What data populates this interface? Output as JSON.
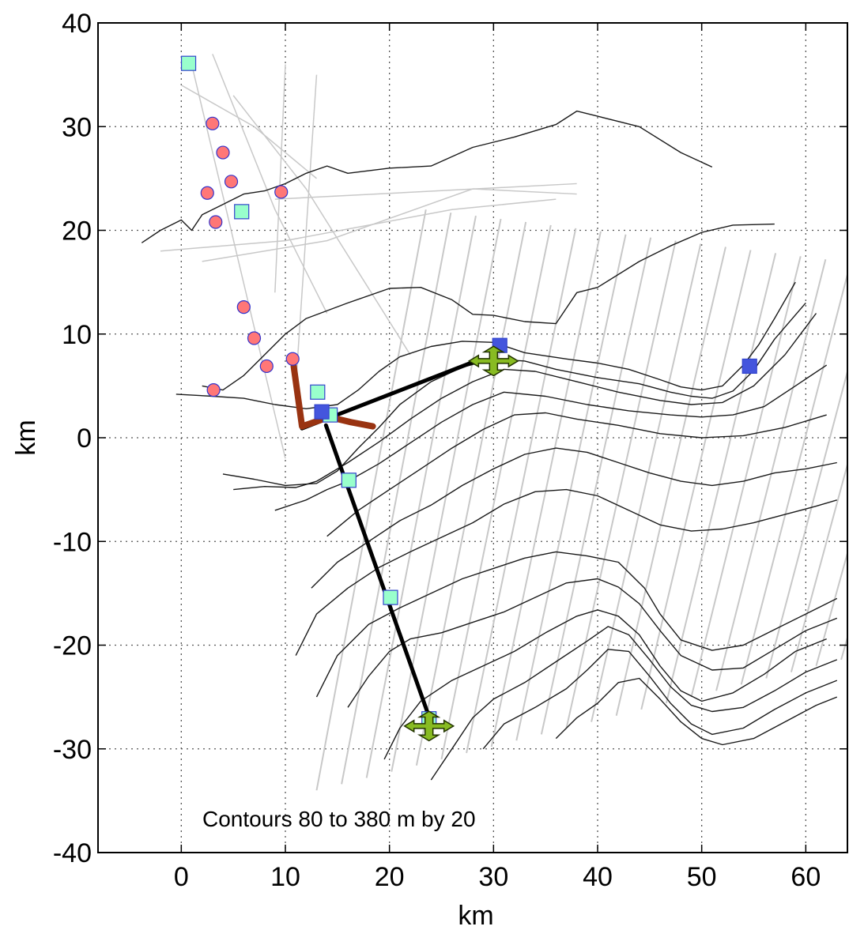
{
  "chart_data": {
    "type": "scatter",
    "title": "",
    "xlabel": "km",
    "ylabel": "km",
    "xlim": [
      -8,
      64
    ],
    "ylim": [
      -40,
      40
    ],
    "xticks": [
      0,
      10,
      20,
      30,
      40,
      50,
      60
    ],
    "yticks": [
      40,
      30,
      20,
      10,
      0,
      -10,
      -20,
      -30,
      -40
    ],
    "grid": true,
    "annotation": "Contours 80 to 380 m by 20",
    "colors": {
      "circle_fill": "#ff7777",
      "circle_stroke": "#3333cc",
      "square_light_fill": "#99ffcc",
      "square_dark_fill": "#4455dd",
      "section_line": "#000000",
      "brown_line": "#993311",
      "arrow_fill": "#88bb22",
      "contour": "#1a1a1a",
      "track": "#c8c8c8"
    },
    "series": [
      {
        "marker": "circle",
        "points": [
          [
            3,
            30.3
          ],
          [
            4,
            27.5
          ],
          [
            4.8,
            24.7
          ],
          [
            2.5,
            23.6
          ],
          [
            3.3,
            20.8
          ],
          [
            9.6,
            23.7
          ],
          [
            6,
            12.6
          ],
          [
            7,
            9.6
          ],
          [
            8.2,
            6.9
          ],
          [
            10.7,
            7.6
          ],
          [
            3.1,
            4.6
          ]
        ]
      },
      {
        "marker": "square-light",
        "points": [
          [
            0.7,
            36.1
          ],
          [
            5.8,
            21.8
          ],
          [
            13.1,
            4.4
          ],
          [
            14.3,
            2.2
          ],
          [
            16.1,
            -4.1
          ],
          [
            20.1,
            -15.4
          ],
          [
            23.8,
            -27.1
          ]
        ]
      },
      {
        "marker": "square-dark",
        "points": [
          [
            30.6,
            8.9
          ],
          [
            13.5,
            2.5
          ],
          [
            54.6,
            6.9
          ]
        ]
      },
      {
        "marker": "line-black",
        "points": [
          [
            11.6,
            0.9
          ],
          [
            28.3,
            7.4
          ]
        ]
      },
      {
        "marker": "line-black",
        "points": [
          [
            13.9,
            1.2
          ],
          [
            23.8,
            -26.9
          ]
        ]
      },
      {
        "marker": "line-brown",
        "points": [
          [
            10.8,
            6.9
          ],
          [
            11.6,
            1.1
          ],
          [
            14.2,
            2.0
          ],
          [
            16.3,
            1.5
          ],
          [
            18.4,
            1.1
          ]
        ]
      },
      {
        "marker": "move-arrow",
        "points": [
          [
            30.0,
            7.4
          ],
          [
            23.8,
            -27.8
          ]
        ]
      }
    ],
    "contours": [
      [
        [
          -3.8,
          18.8
        ],
        [
          -2,
          20
        ],
        [
          0,
          21
        ],
        [
          1,
          20
        ],
        [
          2,
          21.5
        ],
        [
          4,
          22.5
        ],
        [
          6,
          23.5
        ],
        [
          8,
          23.8
        ],
        [
          10,
          24.5
        ],
        [
          12,
          25.5
        ],
        [
          14,
          26.2
        ],
        [
          16,
          25.5
        ],
        [
          20,
          26
        ],
        [
          24,
          26.2
        ],
        [
          28,
          28
        ],
        [
          32,
          29
        ],
        [
          36,
          30.2
        ],
        [
          38,
          31.5
        ],
        [
          40,
          31
        ],
        [
          44,
          30
        ],
        [
          48,
          27.5
        ],
        [
          51,
          26.1
        ]
      ],
      [
        [
          2,
          5
        ],
        [
          4,
          4.6
        ],
        [
          6,
          6
        ],
        [
          8,
          8
        ],
        [
          10,
          10
        ],
        [
          12,
          11.5
        ],
        [
          16,
          13
        ],
        [
          20,
          14.4
        ],
        [
          23,
          14.5
        ],
        [
          26,
          13.3
        ],
        [
          28,
          11.9
        ],
        [
          30,
          11.8
        ],
        [
          33,
          11.2
        ],
        [
          36,
          11
        ],
        [
          38,
          14
        ],
        [
          40,
          14.5
        ],
        [
          44,
          17
        ],
        [
          47,
          18.5
        ],
        [
          50,
          19.8
        ],
        [
          53,
          20.5
        ],
        [
          57,
          20.6
        ]
      ],
      [
        [
          -0.5,
          4.2
        ],
        [
          3,
          4
        ],
        [
          6,
          3.8
        ],
        [
          9,
          3.2
        ],
        [
          12,
          2.8
        ],
        [
          15,
          3.2
        ],
        [
          17,
          4.6
        ],
        [
          19,
          6.4
        ],
        [
          21,
          7.8
        ],
        [
          24,
          8.8
        ],
        [
          27,
          9.3
        ],
        [
          30,
          9.2
        ],
        [
          33,
          8.2
        ],
        [
          37,
          7.6
        ],
        [
          40,
          7.2
        ],
        [
          43,
          6.6
        ],
        [
          46,
          5.6
        ],
        [
          48,
          4.9
        ],
        [
          50,
          4.6
        ],
        [
          52,
          5
        ],
        [
          54,
          7
        ],
        [
          55.5,
          9
        ],
        [
          57,
          11.5
        ],
        [
          59,
          15
        ]
      ],
      [
        [
          4,
          -3.5
        ],
        [
          7,
          -4
        ],
        [
          10,
          -4.6
        ],
        [
          13,
          -4.4
        ],
        [
          15,
          -3.2
        ],
        [
          17,
          -1
        ],
        [
          19,
          1
        ],
        [
          21,
          3.2
        ],
        [
          24,
          5.4
        ],
        [
          27,
          6.8
        ],
        [
          30,
          7.6
        ],
        [
          33,
          7.4
        ],
        [
          36,
          6.6
        ],
        [
          40,
          5.8
        ],
        [
          44,
          5.2
        ],
        [
          47,
          4.4
        ],
        [
          49,
          4
        ],
        [
          51,
          3.8
        ],
        [
          53,
          4.5
        ],
        [
          55,
          6.5
        ],
        [
          57,
          9.5
        ],
        [
          60,
          13
        ]
      ],
      [
        [
          5,
          -5
        ],
        [
          8,
          -4.7
        ],
        [
          11,
          -4.8
        ],
        [
          13,
          -4.2
        ],
        [
          16,
          -2.4
        ],
        [
          19,
          -0.4
        ],
        [
          22,
          1.8
        ],
        [
          25,
          3.8
        ],
        [
          28,
          5.4
        ],
        [
          31,
          6.6
        ],
        [
          34,
          6.4
        ],
        [
          38,
          5.4
        ],
        [
          42,
          4.4
        ],
        [
          46,
          3.6
        ],
        [
          49,
          3.2
        ],
        [
          52,
          3.4
        ],
        [
          55,
          5
        ],
        [
          58,
          8
        ],
        [
          61,
          12
        ]
      ],
      [
        [
          9,
          -7
        ],
        [
          12,
          -6
        ],
        [
          14,
          -5
        ],
        [
          16,
          -4.2
        ],
        [
          19,
          -2.5
        ],
        [
          22,
          -0.5
        ],
        [
          25,
          1.5
        ],
        [
          28,
          3.2
        ],
        [
          31,
          4.4
        ],
        [
          35,
          4
        ],
        [
          39,
          3.2
        ],
        [
          43,
          2.6
        ],
        [
          47,
          2.2
        ],
        [
          50,
          2
        ],
        [
          53,
          2.2
        ],
        [
          56,
          3
        ],
        [
          59,
          5
        ],
        [
          62,
          7
        ]
      ],
      [
        [
          14,
          -9.5
        ],
        [
          17,
          -7
        ],
        [
          20,
          -5
        ],
        [
          23,
          -3
        ],
        [
          26,
          -1
        ],
        [
          29,
          0.8
        ],
        [
          32,
          2.2
        ],
        [
          35,
          2.4
        ],
        [
          38,
          1.8
        ],
        [
          42,
          1.2
        ],
        [
          46,
          0.4
        ],
        [
          50,
          0
        ],
        [
          54,
          0.2
        ],
        [
          58,
          1
        ],
        [
          62,
          2.2
        ]
      ],
      [
        [
          12.5,
          -14.5
        ],
        [
          15,
          -12
        ],
        [
          18,
          -10
        ],
        [
          21,
          -8
        ],
        [
          24,
          -6.5
        ],
        [
          27,
          -4.6
        ],
        [
          30,
          -3
        ],
        [
          33,
          -1.6
        ],
        [
          36,
          -1
        ],
        [
          39,
          -1.4
        ],
        [
          42,
          -2.4
        ],
        [
          45,
          -3.4
        ],
        [
          48,
          -4.2
        ],
        [
          51,
          -4.6
        ],
        [
          54,
          -4.2
        ],
        [
          57,
          -3.4
        ],
        [
          60,
          -3
        ],
        [
          63,
          -2.4
        ]
      ],
      [
        [
          11,
          -21
        ],
        [
          13,
          -17
        ],
        [
          16,
          -14.5
        ],
        [
          19,
          -12.5
        ],
        [
          22,
          -11
        ],
        [
          25,
          -9.6
        ],
        [
          28,
          -8.2
        ],
        [
          31,
          -6.4
        ],
        [
          34,
          -5.2
        ],
        [
          37,
          -5
        ],
        [
          40,
          -5.6
        ],
        [
          43,
          -7
        ],
        [
          46,
          -8.4
        ],
        [
          49,
          -9
        ],
        [
          52,
          -8.8
        ],
        [
          55,
          -8.2
        ],
        [
          58,
          -7.4
        ],
        [
          61,
          -6.6
        ],
        [
          63,
          -6
        ]
      ],
      [
        [
          13,
          -25
        ],
        [
          15,
          -21
        ],
        [
          18,
          -18
        ],
        [
          21,
          -16.4
        ],
        [
          24,
          -15
        ],
        [
          27,
          -13.6
        ],
        [
          30,
          -12.6
        ],
        [
          33,
          -11.6
        ],
        [
          36,
          -11
        ],
        [
          39,
          -11.4
        ],
        [
          42,
          -12
        ],
        [
          44.5,
          -14.5
        ],
        [
          46,
          -17
        ],
        [
          48,
          -19.5
        ],
        [
          51,
          -20.5
        ],
        [
          54,
          -20
        ],
        [
          57,
          -18.5
        ],
        [
          60,
          -17
        ],
        [
          63,
          -15.5
        ]
      ],
      [
        [
          16,
          -26
        ],
        [
          18,
          -23
        ],
        [
          20,
          -20.6
        ],
        [
          22,
          -19.4
        ],
        [
          25,
          -18.8
        ],
        [
          28,
          -17.8
        ],
        [
          31,
          -16.8
        ],
        [
          34,
          -15.4
        ],
        [
          37,
          -14
        ],
        [
          40,
          -13.6
        ],
        [
          42,
          -14.4
        ],
        [
          44,
          -16
        ],
        [
          46,
          -18.6
        ],
        [
          48,
          -21
        ],
        [
          51,
          -22.4
        ],
        [
          54,
          -22.2
        ],
        [
          57,
          -20.4
        ],
        [
          60,
          -18.6
        ],
        [
          63,
          -17.4
        ]
      ],
      [
        [
          19.5,
          -31
        ],
        [
          21,
          -28
        ],
        [
          23,
          -25.4
        ],
        [
          26,
          -23.4
        ],
        [
          29,
          -22
        ],
        [
          32,
          -20.6
        ],
        [
          35,
          -18.8
        ],
        [
          38,
          -17.2
        ],
        [
          40,
          -16.6
        ],
        [
          42,
          -17.2
        ],
        [
          44,
          -19
        ],
        [
          46,
          -22
        ],
        [
          48,
          -24.4
        ],
        [
          50,
          -25.4
        ],
        [
          53,
          -24.6
        ],
        [
          56,
          -22.8
        ],
        [
          59,
          -20.6
        ],
        [
          62,
          -19.4
        ]
      ],
      [
        [
          24,
          -33
        ],
        [
          26,
          -30
        ],
        [
          28,
          -27
        ],
        [
          30,
          -25.2
        ],
        [
          33,
          -23.6
        ],
        [
          36,
          -21.6
        ],
        [
          39,
          -19.6
        ],
        [
          41,
          -18.2
        ],
        [
          43,
          -19
        ],
        [
          45,
          -21.4
        ],
        [
          47,
          -24
        ],
        [
          49,
          -25.8
        ],
        [
          51,
          -26.4
        ],
        [
          54,
          -26
        ],
        [
          57,
          -24.4
        ],
        [
          60,
          -22.6
        ],
        [
          63,
          -21.4
        ]
      ],
      [
        [
          29,
          -30
        ],
        [
          31,
          -27.6
        ],
        [
          34,
          -26
        ],
        [
          37,
          -24.2
        ],
        [
          39,
          -22.4
        ],
        [
          41,
          -20.4
        ],
        [
          43,
          -20.6
        ],
        [
          45,
          -23
        ],
        [
          47,
          -25.6
        ],
        [
          49,
          -27.6
        ],
        [
          51,
          -28.6
        ],
        [
          54,
          -28
        ],
        [
          57,
          -26.2
        ],
        [
          60,
          -24.6
        ],
        [
          63,
          -23.4
        ]
      ],
      [
        [
          36,
          -29
        ],
        [
          38,
          -27
        ],
        [
          40,
          -25.6
        ],
        [
          42,
          -23.6
        ],
        [
          44,
          -23.2
        ],
        [
          46,
          -25.2
        ],
        [
          48,
          -27.4
        ],
        [
          50,
          -29
        ],
        [
          52,
          -29.6
        ],
        [
          55,
          -29
        ],
        [
          58,
          -27.4
        ],
        [
          61,
          -25.8
        ],
        [
          63,
          -25
        ]
      ]
    ]
  }
}
